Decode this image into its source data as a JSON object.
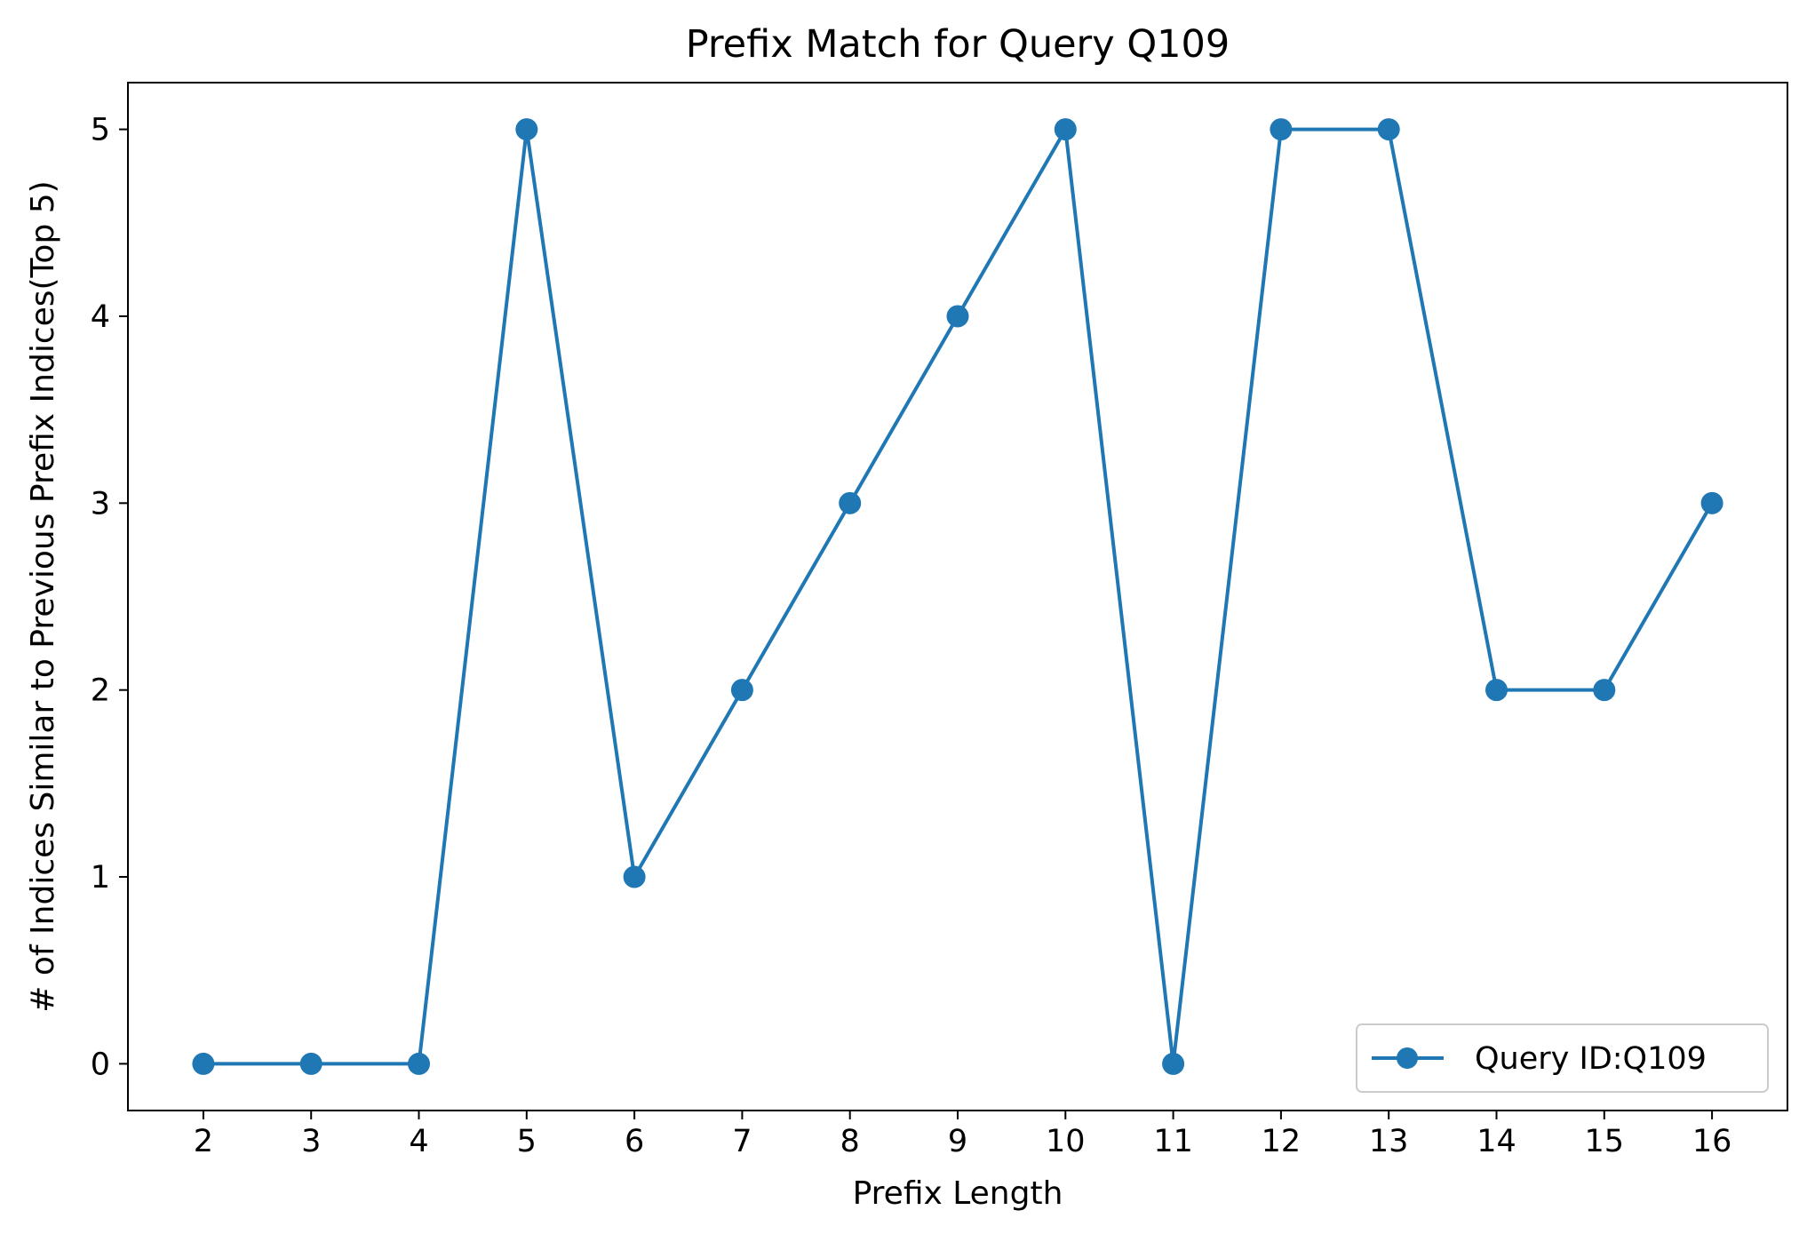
{
  "chart_data": {
    "type": "line",
    "title": "Prefix Match for Query Q109",
    "xlabel": "Prefix Length",
    "ylabel": "# of Indices Similar to Previous Prefix Indices(Top 5)",
    "x": [
      2,
      3,
      4,
      5,
      6,
      7,
      8,
      9,
      10,
      11,
      12,
      13,
      14,
      15,
      16
    ],
    "series": [
      {
        "name": "Query ID:Q109",
        "color": "#1f77b4",
        "marker": "circle",
        "values": [
          0,
          0,
          0,
          5,
          1,
          2,
          3,
          4,
          5,
          0,
          5,
          5,
          2,
          2,
          3
        ]
      }
    ],
    "xticks": [
      "2",
      "3",
      "4",
      "5",
      "6",
      "7",
      "8",
      "9",
      "10",
      "11",
      "12",
      "13",
      "14",
      "15",
      "16"
    ],
    "yticks": [
      "0",
      "1",
      "2",
      "3",
      "4",
      "5"
    ],
    "xlim": [
      1.3,
      16.7
    ],
    "ylim": [
      -0.25,
      5.25
    ],
    "grid": false,
    "legend_position": "lower-right"
  }
}
